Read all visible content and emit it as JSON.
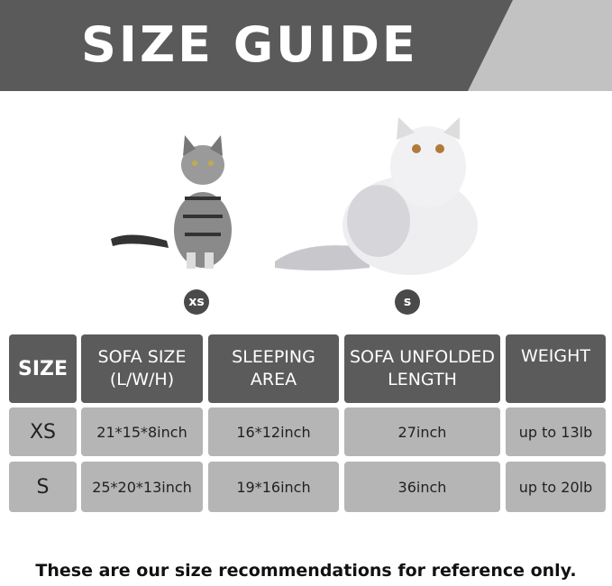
{
  "banner": {
    "title": "SIZE GUIDE"
  },
  "cats": [
    {
      "badge": "xs"
    },
    {
      "badge": "s"
    }
  ],
  "table": {
    "headers": [
      "SIZE",
      "SOFA SIZE\n(L/W/H)",
      "SLEEPING\nAREA",
      "SOFA UNFOLDED\nLENGTH",
      "WEIGHT"
    ],
    "rows": [
      [
        "XS",
        "21*15*8inch",
        "16*12inch",
        "27inch",
        "up to 13lb"
      ],
      [
        "S",
        "25*20*13inch",
        "19*16inch",
        "36inch",
        "up to 20lb"
      ]
    ]
  },
  "footer": "These are our size recommendations for reference only.",
  "colors": {
    "header": "#5b5b5b",
    "body": "#b5b5b5",
    "banner": "#5a5a5a",
    "banner_accent": "#c2c2c2"
  }
}
